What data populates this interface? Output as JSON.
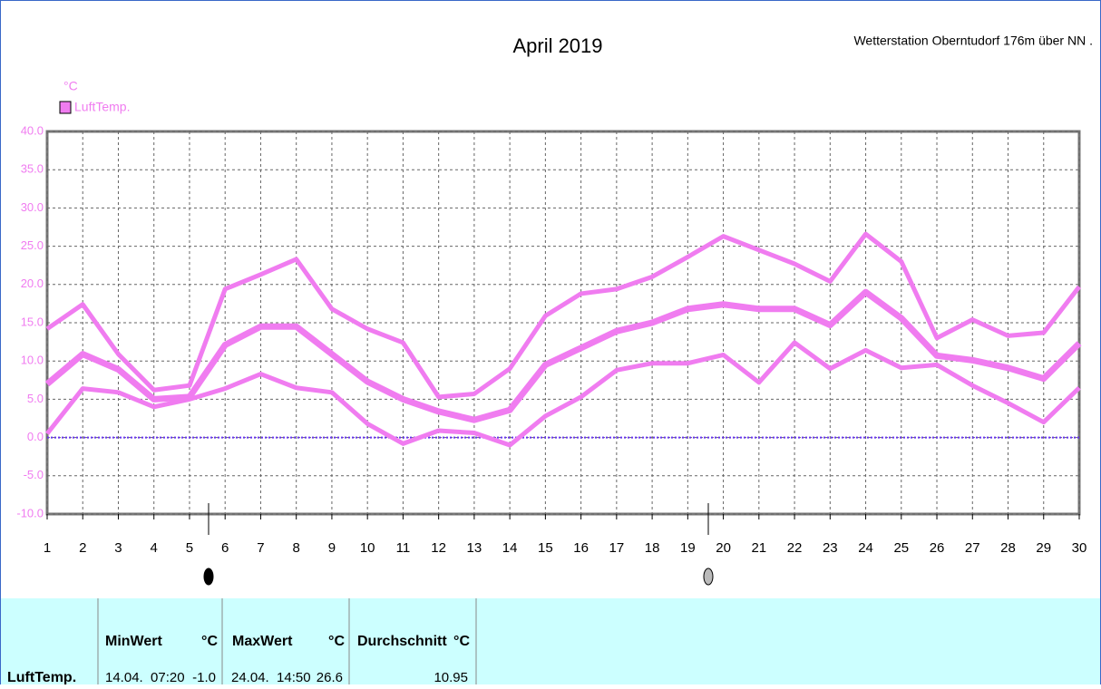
{
  "chart_data": {
    "type": "line",
    "title": "April 2019",
    "subtitle": "Wetterstation Oberntudorf 176m über NN .",
    "y_unit": "°C",
    "x": [
      1,
      2,
      3,
      4,
      5,
      6,
      7,
      8,
      9,
      10,
      11,
      12,
      13,
      14,
      15,
      16,
      17,
      18,
      19,
      20,
      21,
      22,
      23,
      24,
      25,
      26,
      27,
      28,
      29,
      30
    ],
    "xlim": [
      1,
      30
    ],
    "xticks": [
      1,
      2,
      3,
      4,
      5,
      6,
      7,
      8,
      9,
      10,
      11,
      12,
      13,
      14,
      15,
      16,
      17,
      18,
      19,
      20,
      21,
      22,
      23,
      24,
      25,
      26,
      27,
      28,
      29,
      30
    ],
    "ylim": [
      -10,
      40
    ],
    "yticks": [
      {
        "value": -10,
        "label": "-10.0"
      },
      {
        "value": -5,
        "label": "-5.0"
      },
      {
        "value": 0,
        "label": "0.0"
      },
      {
        "value": 5,
        "label": "5.0"
      },
      {
        "value": 10,
        "label": "10.0"
      },
      {
        "value": 15,
        "label": "15.0"
      },
      {
        "value": 20,
        "label": "20.0"
      },
      {
        "value": 25,
        "label": "25.0"
      },
      {
        "value": 30,
        "label": "30.0"
      },
      {
        "value": 35,
        "label": "35.0"
      },
      {
        "value": 40,
        "label": "40.0"
      }
    ],
    "grid": true,
    "zero_line": "#6633ee",
    "series": [
      {
        "name": "LuftTemp.",
        "color": "#f07cf0",
        "values": [
          7.0,
          10.9,
          8.9,
          5.0,
          5.3,
          12.1,
          14.5,
          14.5,
          10.9,
          7.3,
          5.0,
          3.4,
          2.3,
          3.6,
          9.5,
          11.7,
          13.9,
          15.0,
          16.8,
          17.4,
          16.8,
          16.8,
          14.7,
          19.0,
          15.6,
          10.7,
          10.1,
          9.1,
          7.7,
          12.3
        ]
      },
      {
        "color": "#f07cf0",
        "values": [
          14.2,
          17.4,
          10.9,
          6.2,
          6.8,
          19.4,
          21.3,
          23.3,
          16.8,
          14.2,
          12.4,
          5.3,
          5.7,
          9.0,
          15.9,
          18.8,
          19.4,
          21.0,
          23.6,
          26.3,
          24.5,
          22.7,
          20.4,
          26.6,
          23.0,
          13.0,
          15.4,
          13.3,
          13.7,
          19.7
        ]
      },
      {
        "color": "#f07cf0",
        "values": [
          0.5,
          6.4,
          5.9,
          4.0,
          5.0,
          6.4,
          8.3,
          6.5,
          5.9,
          1.8,
          -0.8,
          0.9,
          0.6,
          -1.0,
          2.8,
          5.3,
          8.8,
          9.7,
          9.7,
          10.8,
          7.2,
          12.4,
          9.0,
          11.4,
          9.1,
          9.5,
          6.8,
          4.5,
          2.0,
          6.5
        ]
      }
    ]
  },
  "table": {
    "header": [
      "MinWert",
      "°C",
      "MaxWert",
      "°C",
      "Durchschnitt",
      "°C"
    ],
    "rows": [
      [
        "LuftTemp.",
        "14.04.  07:20",
        "-1.0",
        "24.04.  14:50",
        "26.6",
        "10.95"
      ]
    ]
  }
}
